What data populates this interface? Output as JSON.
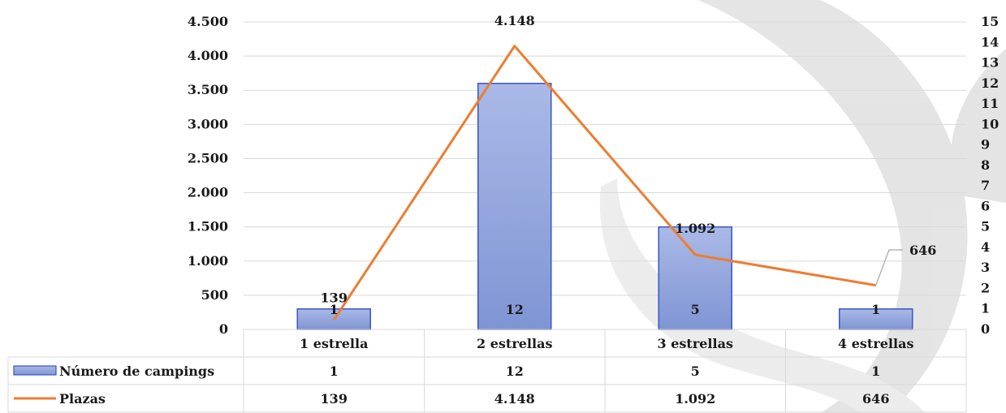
{
  "chart_data": {
    "type": "bar",
    "categories": [
      "1 estrella",
      "2 estrellas",
      "3 estrellas",
      "4 estrellas"
    ],
    "series": [
      {
        "name": "Número de campings",
        "type": "bar",
        "axis": "secondary",
        "values": [
          1,
          12,
          5,
          1
        ],
        "labels": [
          "1",
          "12",
          "5",
          "1"
        ],
        "color": "#8fa3db"
      },
      {
        "name": "Plazas",
        "type": "line",
        "axis": "primary",
        "values": [
          139,
          4148,
          1092,
          646
        ],
        "labels": [
          "139",
          "4.148",
          "1.092",
          "646"
        ],
        "color": "#ed7d31"
      }
    ],
    "y_left": {
      "range": [
        0,
        4500
      ],
      "ticks": [
        0,
        500,
        1000,
        1500,
        2000,
        2500,
        3000,
        3500,
        4000,
        4500
      ],
      "tick_labels": [
        "0",
        "500",
        "1.000",
        "1.500",
        "2.000",
        "2.500",
        "3.000",
        "3.500",
        "4.000",
        "4.500"
      ]
    },
    "y_right": {
      "range": [
        0,
        15
      ],
      "ticks": [
        0,
        1,
        2,
        3,
        4,
        5,
        6,
        7,
        8,
        9,
        10,
        11,
        12,
        13,
        14,
        15
      ],
      "tick_labels": [
        "0",
        "1",
        "2",
        "3",
        "4",
        "5",
        "6",
        "7",
        "8",
        "9",
        "10",
        "11",
        "12",
        "13",
        "14",
        "15"
      ]
    },
    "grid": true,
    "legend": "data-table",
    "title": "",
    "xlabel": "",
    "ylabel": ""
  },
  "colors": {
    "bar_fill": "#8fa3db",
    "bar_stroke": "#3a57c4",
    "line": "#ed7d31",
    "grid": "#d9d9d9",
    "watermark": "#d0d0d0"
  }
}
